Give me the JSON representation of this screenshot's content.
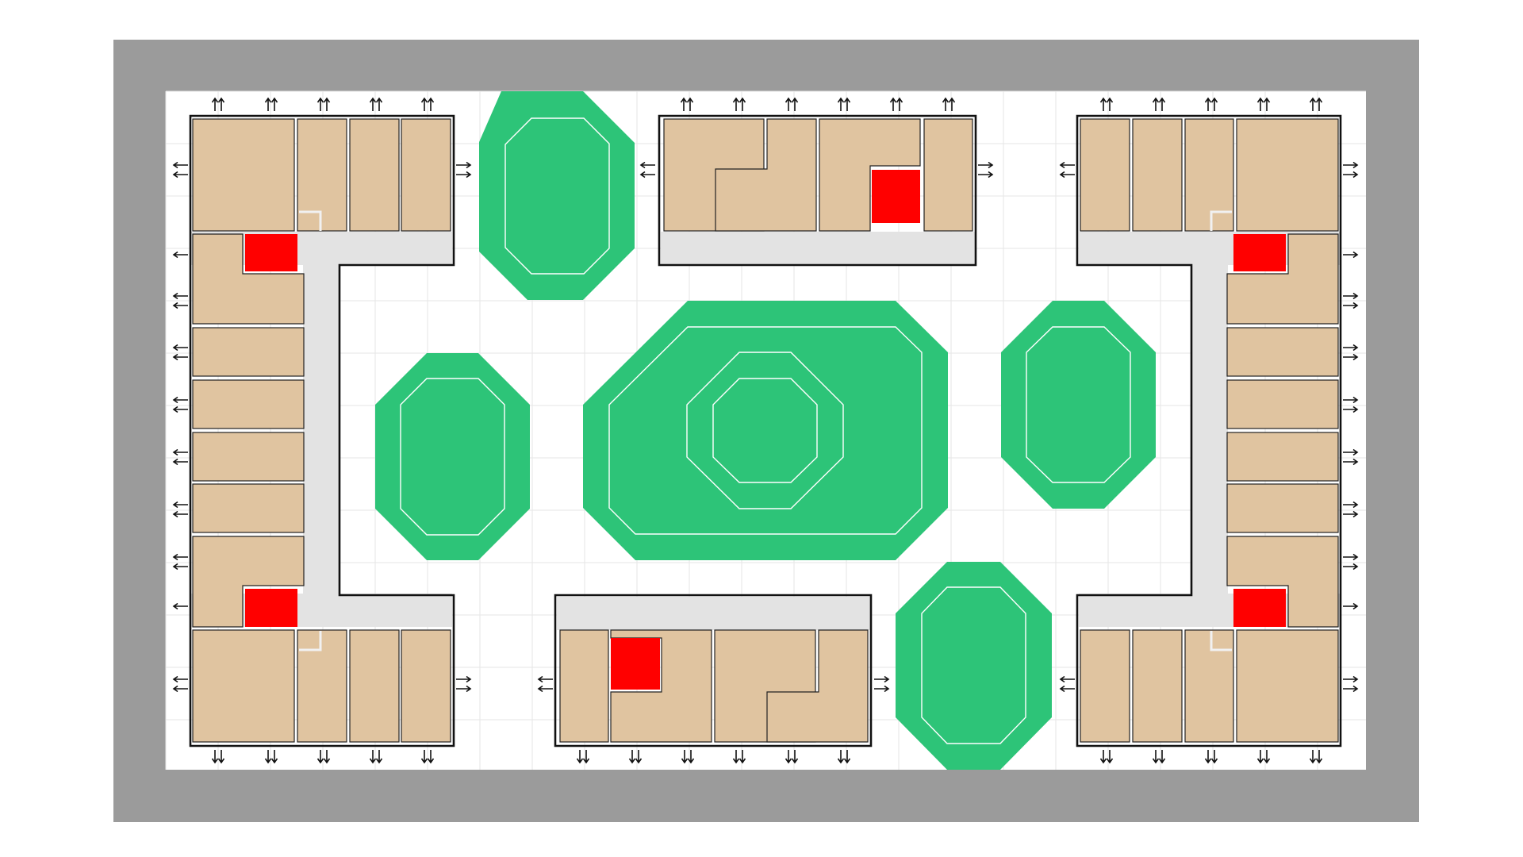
{
  "colors": {
    "outer_border": "#9b9b9b",
    "floor": "#ffffff",
    "grid": "#e6e6e6",
    "room_fill": "#e0c4a0",
    "corridor": "#e3e3e3",
    "wall": "#111111",
    "marker": "#ff0000",
    "green_space": "#2dc478"
  },
  "legend": [],
  "blocks": [
    {
      "id": "top-left-block",
      "shape": "L-wing",
      "rooms": 14,
      "markers": 1
    },
    {
      "id": "bottom-left-block",
      "shape": "L-wing",
      "rooms": 5,
      "markers": 1
    },
    {
      "id": "top-center-block",
      "shape": "bar",
      "rooms": 5,
      "markers": 1
    },
    {
      "id": "bottom-center-block",
      "shape": "bar",
      "rooms": 5,
      "markers": 1
    },
    {
      "id": "top-right-block",
      "shape": "L-wing",
      "rooms": 14,
      "markers": 1
    },
    {
      "id": "bottom-right-block",
      "shape": "L-wing",
      "rooms": 5,
      "markers": 1
    }
  ],
  "green_spaces": [
    {
      "id": "green-top-left",
      "shape": "octagon"
    },
    {
      "id": "green-left",
      "shape": "octagon"
    },
    {
      "id": "green-central",
      "shape": "octagon",
      "rings": 3
    },
    {
      "id": "green-right",
      "shape": "octagon"
    },
    {
      "id": "green-bottom-right",
      "shape": "octagon"
    }
  ],
  "icons": {
    "exit_arrow": "arrow-icon",
    "marker": "red-square-marker"
  }
}
